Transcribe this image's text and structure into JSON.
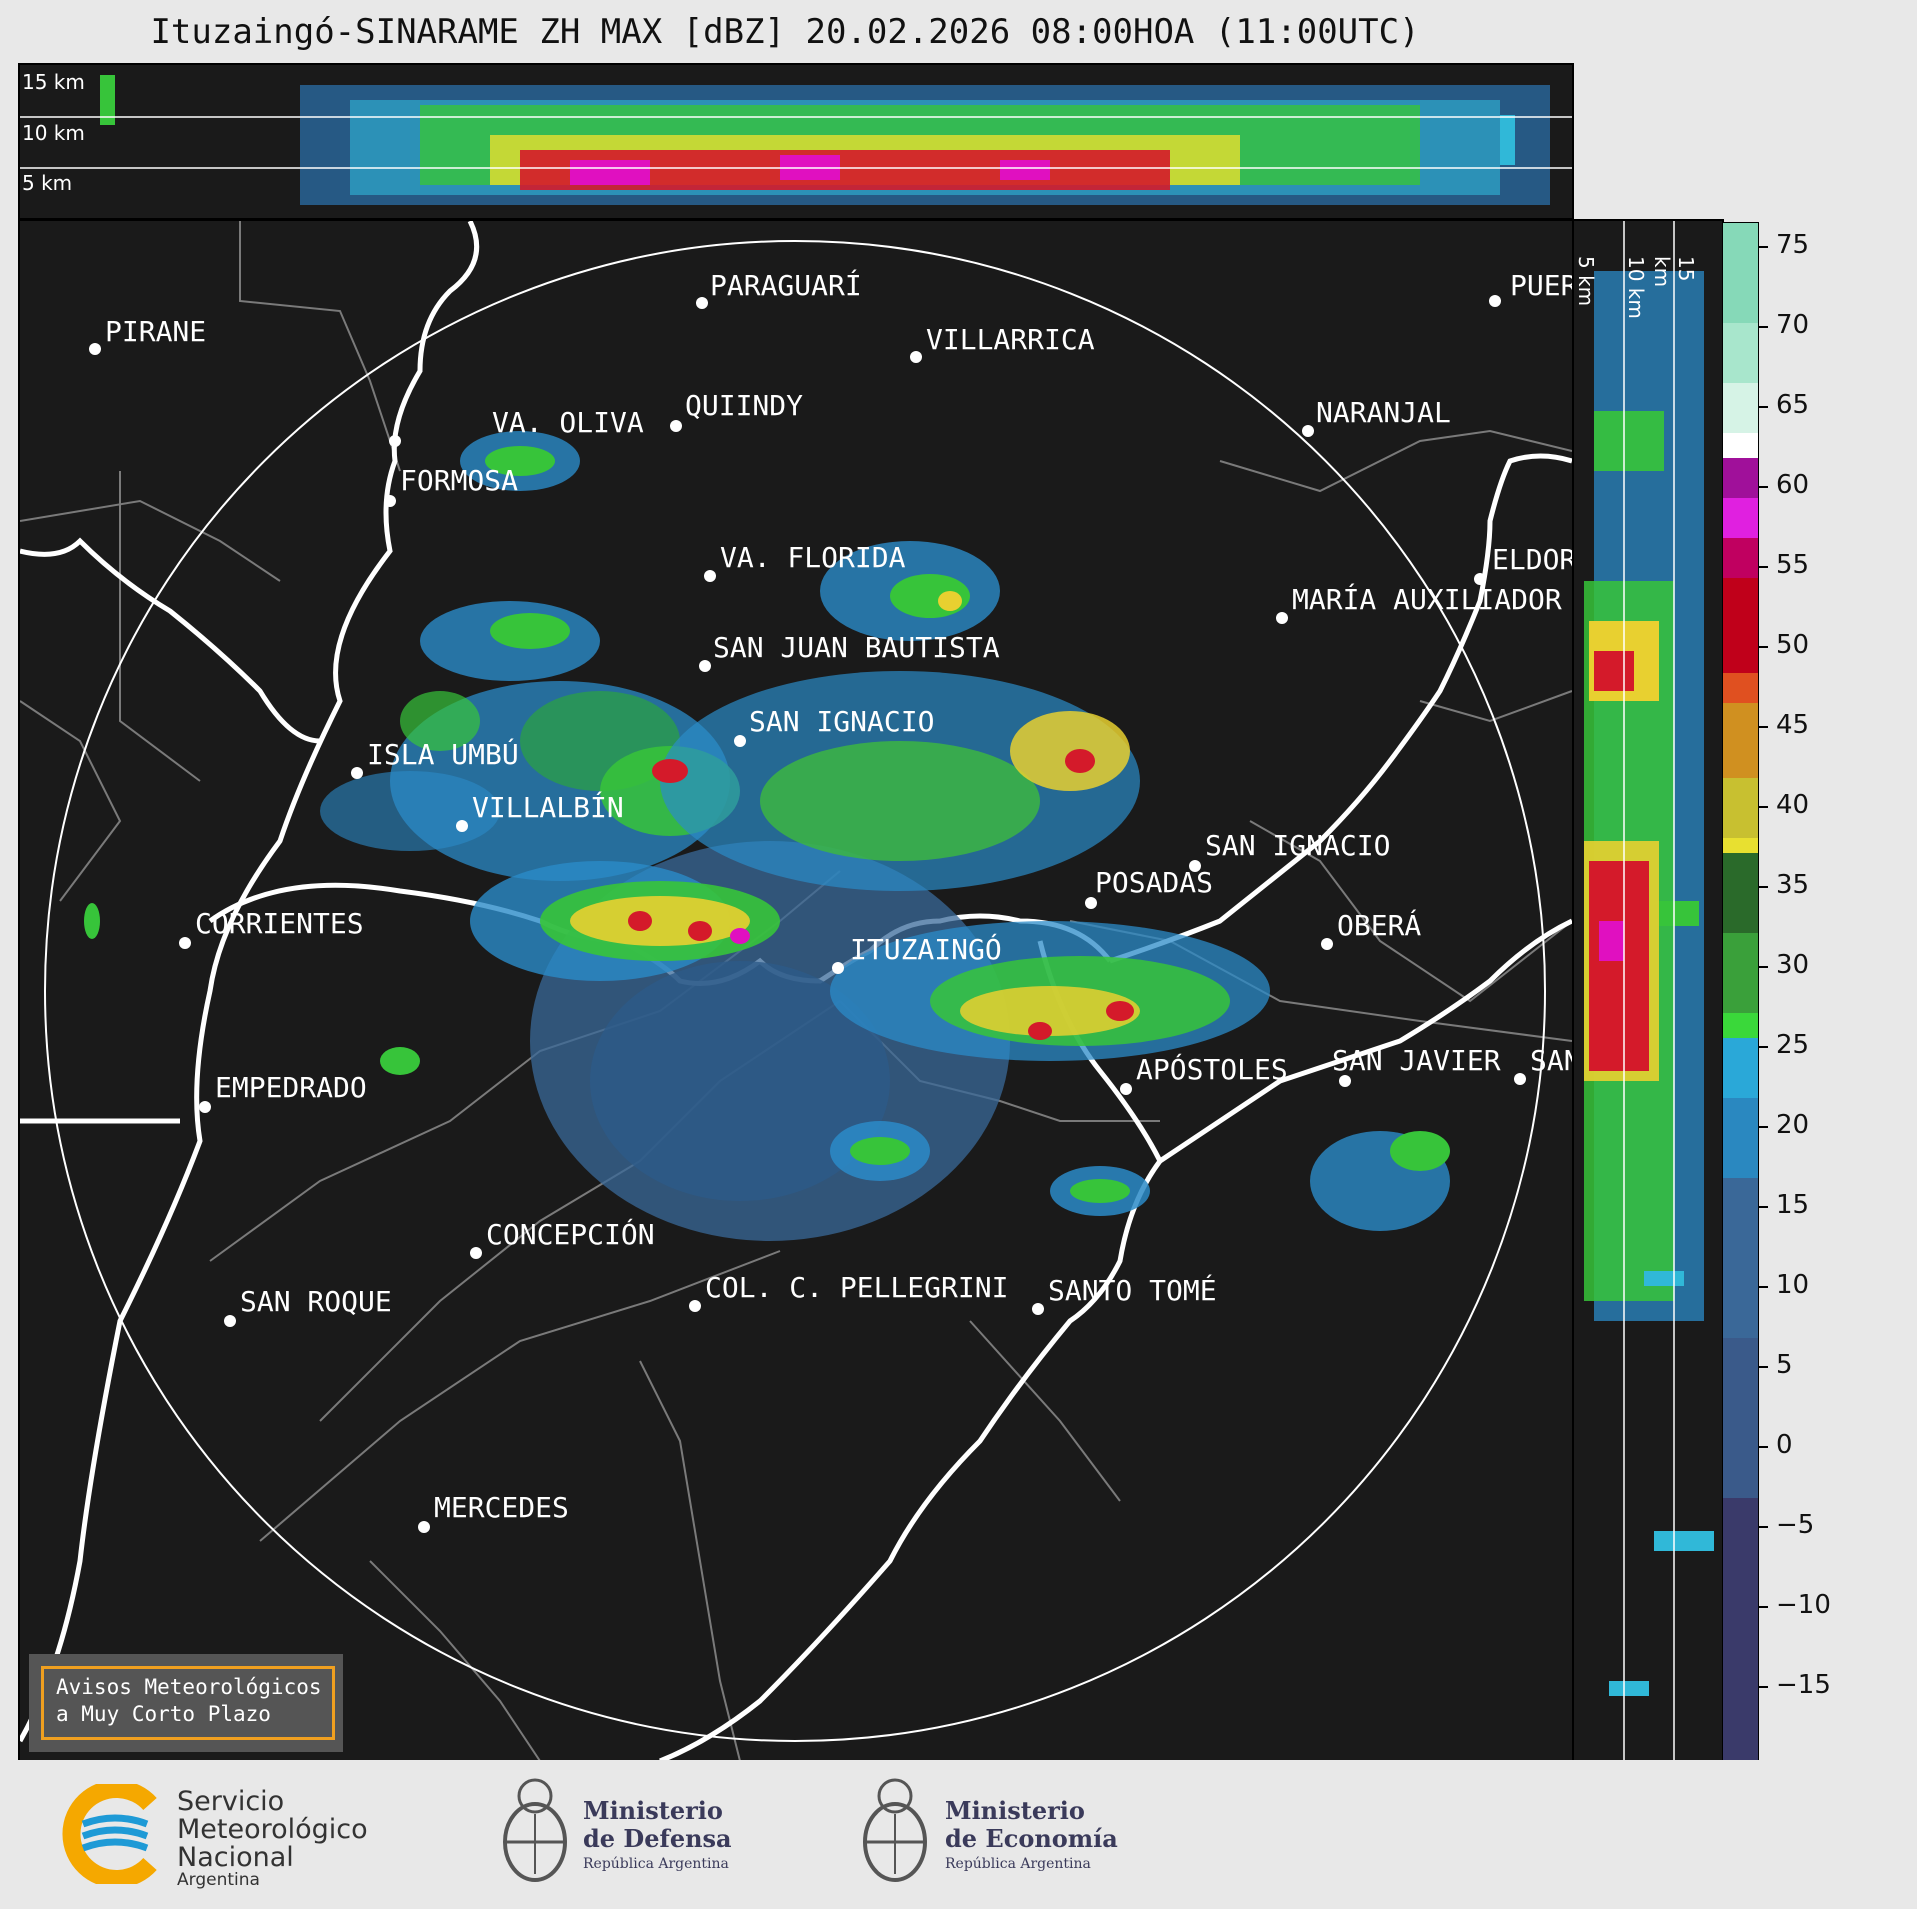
{
  "title": "Ituzaingó-SINARAME ZH MAX [dBZ] 20.02.2026 08:00HOA (11:00UTC)",
  "top_strip": {
    "km_labels": [
      "15 km",
      "10 km",
      "5 km"
    ]
  },
  "side_strip": {
    "km_labels": [
      "5 km",
      "10 km",
      "15 km"
    ]
  },
  "colorbar": {
    "unit": "dBZ",
    "ticks": [
      "75",
      "70",
      "65",
      "60",
      "55",
      "50",
      "45",
      "40",
      "35",
      "30",
      "25",
      "20",
      "15",
      "10",
      "5",
      "0",
      "−5",
      "−10",
      "−15"
    ],
    "range": [
      -19,
      77
    ]
  },
  "cities": [
    {
      "name": "PARAGUARÍ"
    },
    {
      "name": "VILLARRICA"
    },
    {
      "name": "PIRANE"
    },
    {
      "name": "VA. OLIVA"
    },
    {
      "name": "QUIINDY"
    },
    {
      "name": "NARANJAL"
    },
    {
      "name": "FORMOSA"
    },
    {
      "name": "VA. FLORIDA"
    },
    {
      "name": "ELDOR"
    },
    {
      "name": "MARÍA AUXILIADOR"
    },
    {
      "name": "SAN JUAN BAUTISTA"
    },
    {
      "name": "SAN IGNACIO"
    },
    {
      "name": "ISLA UMBÚ"
    },
    {
      "name": "VILLALBÍN"
    },
    {
      "name": "SAN IGNACIO"
    },
    {
      "name": "POSADAS"
    },
    {
      "name": "CORRIENTES"
    },
    {
      "name": "ITUZAINGÓ"
    },
    {
      "name": "OBERÁ"
    },
    {
      "name": "EMPEDRADO"
    },
    {
      "name": "APÓSTOLES"
    },
    {
      "name": "SAN JAVIER"
    },
    {
      "name": "SAN"
    },
    {
      "name": "CONCEPCIÓN"
    },
    {
      "name": "COL. C. PELLEGRINI"
    },
    {
      "name": "SANTO TOMÉ"
    },
    {
      "name": "SAN ROQUE"
    },
    {
      "name": "MERCEDES"
    },
    {
      "name": "PUER"
    }
  ],
  "notice": {
    "line1": "Avisos Meteorológicos",
    "line2": "a Muy Corto Plazo"
  },
  "logos": {
    "smn": {
      "line1": "Servicio",
      "line2": "Meteorológico",
      "line3": "Nacional",
      "line4": "Argentina",
      "accent": "#f5a800",
      "blue": "#1e9ad6"
    },
    "defensa": {
      "line1": "Ministerio",
      "line2": "de Defensa",
      "line3": "República Argentina"
    },
    "economia": {
      "line1": "Ministerio",
      "line2": "de Economía",
      "line3": "República Argentina"
    }
  },
  "colors": {
    "background": "#1a1a1a",
    "page": "#e8e8e8",
    "notice_border": "#f0a020"
  }
}
